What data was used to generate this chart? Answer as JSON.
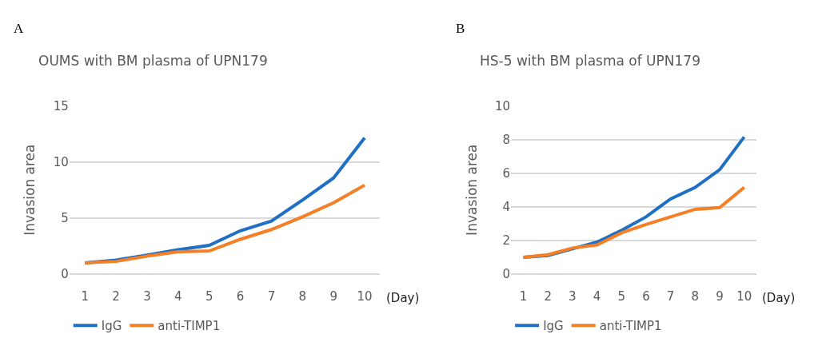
{
  "chart_data": [
    {
      "type": "line",
      "title": "OUMS with BM plasma of UPN179",
      "xlabel": "(Day)",
      "ylabel": "Invasion area",
      "annotations": [
        "A"
      ],
      "categories": [
        "1",
        "2",
        "3",
        "4",
        "5",
        "6",
        "7",
        "8",
        "9",
        "10"
      ],
      "ylim": [
        0,
        15
      ],
      "yticks": [
        0,
        5,
        10,
        15
      ],
      "grid": "y",
      "legend": "bottom",
      "marker": "none",
      "series": [
        {
          "name": "IgG",
          "color": "#1f6fc5",
          "values": [
            1.0,
            1.25,
            1.7,
            2.17,
            2.56,
            3.86,
            4.73,
            6.6,
            8.57,
            12.15
          ]
        },
        {
          "name": "anti-TIMP1",
          "color": "#f57f26",
          "values": [
            1.0,
            1.13,
            1.6,
            2.0,
            2.06,
            3.1,
            3.97,
            5.1,
            6.36,
            7.92
          ]
        }
      ]
    },
    {
      "type": "line",
      "title": "HS-5 with BM plasma of UPN179",
      "xlabel": "(Day)",
      "ylabel": "Invasion area",
      "annotations": [
        "B"
      ],
      "categories": [
        "1",
        "2",
        "3",
        "4",
        "5",
        "6",
        "7",
        "8",
        "9",
        "10"
      ],
      "ylim": [
        0,
        10
      ],
      "yticks": [
        0,
        2,
        4,
        6,
        8,
        10
      ],
      "grid": "y",
      "legend": "bottom",
      "marker": "none",
      "series": [
        {
          "name": "IgG",
          "color": "#1f6fc5",
          "values": [
            1.0,
            1.1,
            1.5,
            1.9,
            2.6,
            3.4,
            4.47,
            5.15,
            6.2,
            8.15
          ]
        },
        {
          "name": "anti-TIMP1",
          "color": "#f57f26",
          "values": [
            1.0,
            1.15,
            1.55,
            1.73,
            2.45,
            2.95,
            3.4,
            3.85,
            3.95,
            5.15
          ]
        }
      ]
    }
  ]
}
